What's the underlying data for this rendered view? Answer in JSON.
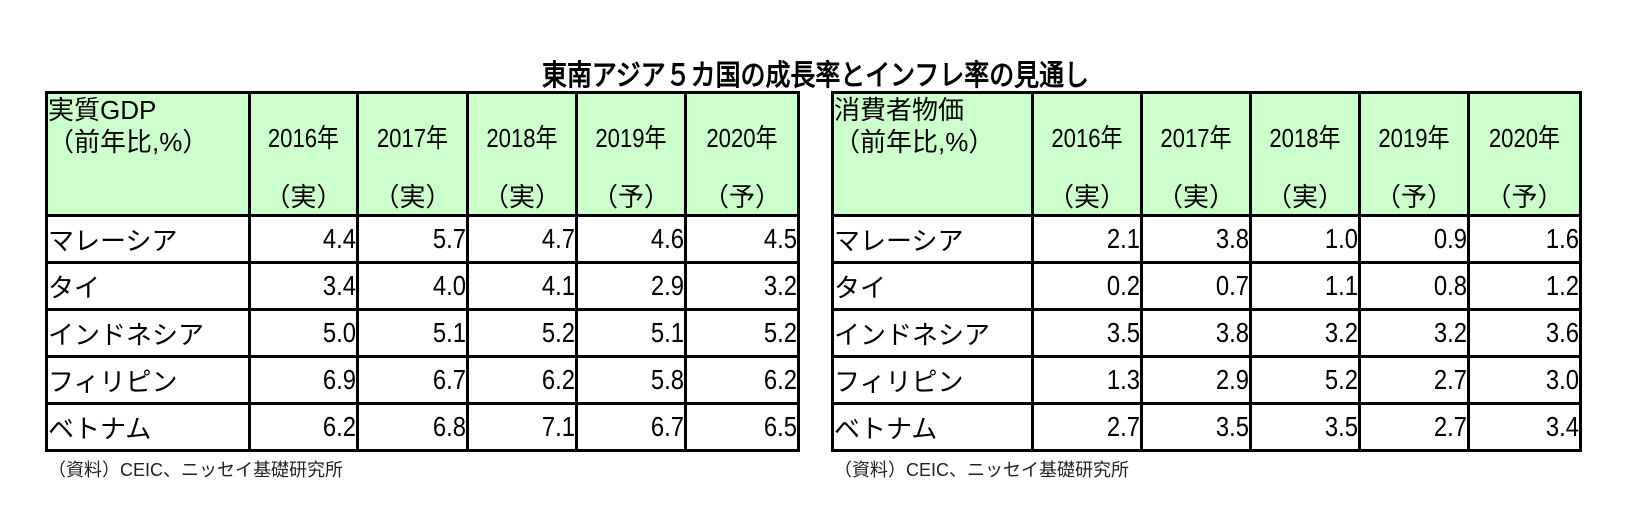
{
  "title": "東南アジア５カ国の成長率とインフレ率の見通し",
  "tables": {
    "gdp": {
      "corner_line1": "実質GDP",
      "corner_line2": "（前年比,%）",
      "headers": [
        {
          "year": "2016年",
          "kind": "（実）"
        },
        {
          "year": "2017年",
          "kind": "（実）"
        },
        {
          "year": "2018年",
          "kind": "（実）"
        },
        {
          "year": "2019年",
          "kind": "（予）"
        },
        {
          "year": "2020年",
          "kind": "（予）"
        }
      ],
      "rows": [
        {
          "name": "マレーシア",
          "values": [
            "4.4",
            "5.7",
            "4.7",
            "4.6",
            "4.5"
          ]
        },
        {
          "name": "タイ",
          "values": [
            "3.4",
            "4.0",
            "4.1",
            "2.9",
            "3.2"
          ]
        },
        {
          "name": "インドネシア",
          "values": [
            "5.0",
            "5.1",
            "5.2",
            "5.1",
            "5.2"
          ]
        },
        {
          "name": "フィリピン",
          "values": [
            "6.9",
            "6.7",
            "6.2",
            "5.8",
            "6.2"
          ]
        },
        {
          "name": "ベトナム",
          "values": [
            "6.2",
            "6.8",
            "7.1",
            "6.7",
            "6.5"
          ]
        }
      ],
      "source": "（資料）CEIC、ニッセイ基礎研究所"
    },
    "cpi": {
      "corner_line1": "消費者物価",
      "corner_line2": "（前年比,%）",
      "headers": [
        {
          "year": "2016年",
          "kind": "（実）"
        },
        {
          "year": "2017年",
          "kind": "（実）"
        },
        {
          "year": "2018年",
          "kind": "（実）"
        },
        {
          "year": "2019年",
          "kind": "（予）"
        },
        {
          "year": "2020年",
          "kind": "（予）"
        }
      ],
      "rows": [
        {
          "name": "マレーシア",
          "values": [
            "2.1",
            "3.8",
            "1.0",
            "0.9",
            "1.6"
          ]
        },
        {
          "name": "タイ",
          "values": [
            "0.2",
            "0.7",
            "1.1",
            "0.8",
            "1.2"
          ]
        },
        {
          "name": "インドネシア",
          "values": [
            "3.5",
            "3.8",
            "3.2",
            "3.2",
            "3.6"
          ]
        },
        {
          "name": "フィリピン",
          "values": [
            "1.3",
            "2.9",
            "5.2",
            "2.7",
            "3.0"
          ]
        },
        {
          "name": "ベトナム",
          "values": [
            "2.7",
            "3.5",
            "3.5",
            "2.7",
            "3.4"
          ]
        }
      ],
      "source": "（資料）CEIC、ニッセイ基礎研究所"
    }
  },
  "colors": {
    "header_bg": "#ccffcc",
    "border": "#000000"
  }
}
